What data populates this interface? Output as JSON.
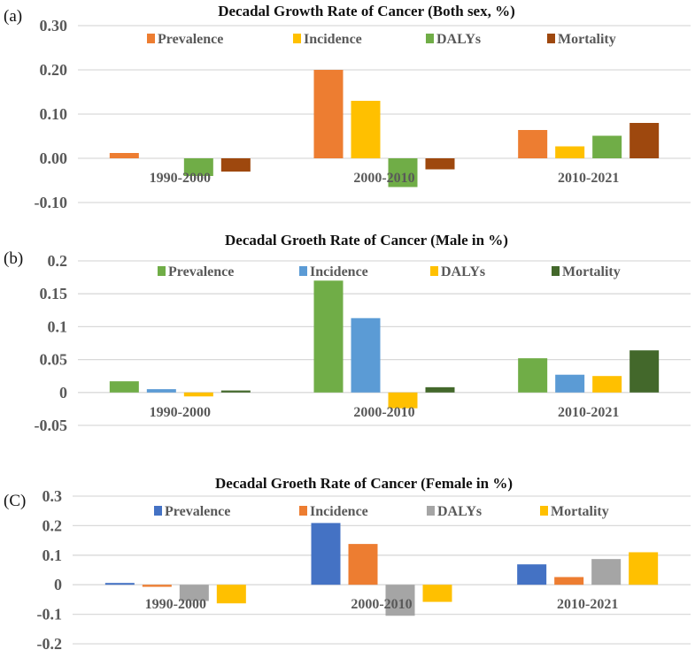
{
  "chart_data": [
    {
      "type": "bar",
      "panel_label": "(a)",
      "title": "Decadal Growth Rate of Cancer (Both sex, %)",
      "categories": [
        "1990-2000",
        "2000-2010",
        "2010-2021"
      ],
      "yticks": [
        "0.30",
        "0.20",
        "0.10",
        "0.00",
        "-0.10"
      ],
      "ytick_values": [
        0.3,
        0.2,
        0.1,
        0.0,
        -0.1
      ],
      "ylim": [
        -0.1,
        0.3
      ],
      "grid": true,
      "legend_position": "top",
      "series": [
        {
          "name": "Prevalence",
          "color": "#ED7D31",
          "values": [
            0.012,
            0.2,
            0.064
          ]
        },
        {
          "name": "Incidence",
          "color": "#FFC000",
          "values": [
            0.0,
            0.13,
            0.027
          ]
        },
        {
          "name": "DALYs",
          "color": "#70AD47",
          "values": [
            -0.04,
            -0.065,
            0.051
          ]
        },
        {
          "name": "Mortality",
          "color": "#9E480E",
          "values": [
            -0.03,
            -0.025,
            0.08
          ]
        }
      ]
    },
    {
      "type": "bar",
      "panel_label": "(b)",
      "title": "Decadal Groeth Rate of Cancer  (Male in %)",
      "categories": [
        "1990-2000",
        "2000-2010",
        "2010-2021"
      ],
      "yticks": [
        "0.2",
        "0.15",
        "0.1",
        "0.05",
        "0",
        "-0.05"
      ],
      "ytick_values": [
        0.2,
        0.15,
        0.1,
        0.05,
        0,
        -0.05
      ],
      "ylim": [
        -0.05,
        0.2
      ],
      "grid": true,
      "legend_position": "top",
      "series": [
        {
          "name": "Prevalence",
          "color": "#70AD47",
          "values": [
            0.017,
            0.17,
            0.052
          ]
        },
        {
          "name": "Incidence",
          "color": "#5B9BD5",
          "values": [
            0.005,
            0.113,
            0.027
          ]
        },
        {
          "name": "DALYs",
          "color": "#FFC000",
          "values": [
            -0.006,
            -0.024,
            0.025
          ]
        },
        {
          "name": "Mortality",
          "color": "#43682B",
          "values": [
            0.003,
            0.008,
            0.064
          ]
        }
      ]
    },
    {
      "type": "bar",
      "panel_label": "(C)",
      "title": "Decadal Groeth Rate of Cancer  (Female in %)",
      "categories": [
        "1990-2000",
        "2000-2010",
        "2010-2021"
      ],
      "yticks": [
        "0.3",
        "0.2",
        "0.1",
        "0",
        "-0.1",
        "-0.2"
      ],
      "ytick_values": [
        0.3,
        0.2,
        0.1,
        0,
        -0.1,
        -0.2
      ],
      "ylim": [
        -0.2,
        0.3
      ],
      "grid": true,
      "legend_position": "top",
      "series": [
        {
          "name": "Prevalence",
          "color": "#4472C4",
          "values": [
            0.006,
            0.209,
            0.069
          ]
        },
        {
          "name": "Incidence",
          "color": "#ED7D31",
          "values": [
            -0.007,
            0.138,
            0.026
          ]
        },
        {
          "name": "DALYs",
          "color": "#A5A5A5",
          "values": [
            -0.055,
            -0.105,
            0.087
          ]
        },
        {
          "name": "Mortality",
          "color": "#FFC000",
          "values": [
            -0.063,
            -0.058,
            0.11
          ]
        }
      ]
    }
  ]
}
